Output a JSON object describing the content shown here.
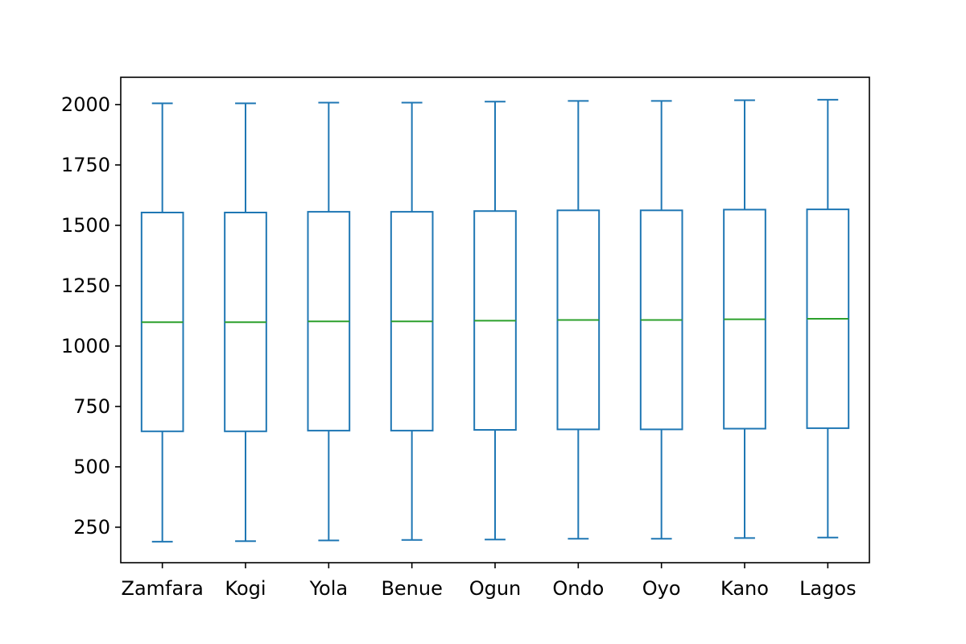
{
  "chart_data": {
    "type": "box",
    "title": "",
    "xlabel": "",
    "ylabel": "",
    "ylim": [
      103,
      2113
    ],
    "yticks": [
      250,
      500,
      750,
      1000,
      1250,
      1500,
      1750,
      2000
    ],
    "grid": false,
    "categories": [
      "Zamfara",
      "Kogi",
      "Yola",
      "Benue",
      "Ogun",
      "Ondo",
      "Oyo",
      "Kano",
      "Lagos"
    ],
    "boxes": [
      {
        "label": "Zamfara",
        "min": 190,
        "q1": 647,
        "median": 1099,
        "q3": 1553,
        "max": 2005
      },
      {
        "label": "Kogi",
        "min": 192,
        "q1": 647,
        "median": 1099,
        "q3": 1553,
        "max": 2005
      },
      {
        "label": "Yola",
        "min": 195,
        "q1": 650,
        "median": 1102,
        "q3": 1556,
        "max": 2008
      },
      {
        "label": "Benue",
        "min": 197,
        "q1": 650,
        "median": 1102,
        "q3": 1556,
        "max": 2008
      },
      {
        "label": "Ogun",
        "min": 199,
        "q1": 653,
        "median": 1105,
        "q3": 1559,
        "max": 2012
      },
      {
        "label": "Ondo",
        "min": 202,
        "q1": 655,
        "median": 1108,
        "q3": 1562,
        "max": 2015
      },
      {
        "label": "Oyo",
        "min": 202,
        "q1": 655,
        "median": 1108,
        "q3": 1562,
        "max": 2015
      },
      {
        "label": "Kano",
        "min": 205,
        "q1": 658,
        "median": 1111,
        "q3": 1565,
        "max": 2018
      },
      {
        "label": "Lagos",
        "min": 207,
        "q1": 660,
        "median": 1113,
        "q3": 1566,
        "max": 2020
      }
    ],
    "colors": {
      "box": "#1f77b4",
      "median": "#2ca02c",
      "axis": "#000000"
    }
  }
}
